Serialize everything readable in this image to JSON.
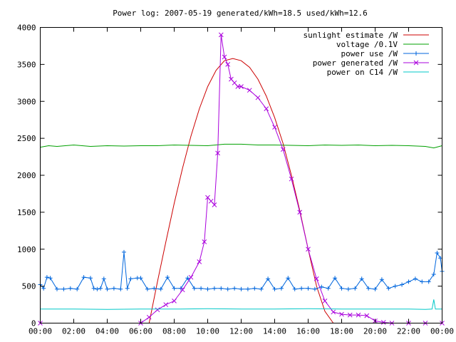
{
  "chart_data": {
    "type": "line",
    "title": "Power log: 2007-05-19 generated/kWh=18.5 used/kWh=12.6",
    "xlabel": "",
    "ylabel": "",
    "xlim": [
      0,
      24
    ],
    "ylim": [
      0,
      4000
    ],
    "x_ticks": [
      0,
      2,
      4,
      6,
      8,
      10,
      12,
      14,
      16,
      18,
      20,
      22,
      24
    ],
    "x_tick_labels": [
      "00:00",
      "02:00",
      "04:00",
      "06:00",
      "08:00",
      "10:00",
      "12:00",
      "14:00",
      "16:00",
      "18:00",
      "20:00",
      "22:00",
      "00:00"
    ],
    "y_ticks": [
      0,
      500,
      1000,
      1500,
      2000,
      2500,
      3000,
      3500,
      4000
    ],
    "y_tick_labels": [
      "0",
      "500",
      "1000",
      "1500",
      "2000",
      "2500",
      "3000",
      "3500",
      "4000"
    ],
    "grid": false,
    "legend_position": "top-right",
    "series": [
      {
        "name": "sunlight estimate /W",
        "color": "#cc0000",
        "marker": "none",
        "x": [
          6.5,
          7,
          7.5,
          8,
          8.5,
          9,
          9.5,
          10,
          10.5,
          11,
          11.5,
          12,
          12.5,
          13,
          13.5,
          14,
          14.5,
          15,
          15.5,
          16,
          16.5,
          17,
          17.5
        ],
        "values": [
          0,
          560,
          1100,
          1620,
          2100,
          2530,
          2900,
          3200,
          3420,
          3550,
          3580,
          3550,
          3460,
          3300,
          3070,
          2780,
          2430,
          2000,
          1520,
          1000,
          500,
          160,
          0
        ]
      },
      {
        "name": "voltage /0.1V",
        "color": "#00a000",
        "marker": "none",
        "x": [
          0,
          0.5,
          1,
          2,
          3,
          4,
          5,
          6,
          7,
          8,
          9,
          10,
          11,
          12,
          13,
          14,
          15,
          16,
          17,
          18,
          19,
          20,
          21,
          22,
          23,
          23.5,
          24
        ],
        "values": [
          2380,
          2400,
          2390,
          2410,
          2390,
          2400,
          2395,
          2400,
          2400,
          2410,
          2405,
          2400,
          2420,
          2420,
          2410,
          2410,
          2405,
          2400,
          2410,
          2405,
          2410,
          2400,
          2405,
          2400,
          2390,
          2370,
          2400
        ]
      },
      {
        "name": "power use /W",
        "color": "#0066dd",
        "marker": "plus",
        "x": [
          0,
          0.2,
          0.4,
          0.6,
          1.0,
          1.4,
          1.8,
          2.2,
          2.6,
          3.0,
          3.2,
          3.4,
          3.6,
          3.8,
          4.0,
          4.4,
          4.8,
          5.0,
          5.2,
          5.4,
          5.8,
          6.0,
          6.4,
          6.8,
          7.2,
          7.6,
          8.0,
          8.4,
          8.8,
          9.2,
          9.6,
          10.0,
          10.4,
          10.8,
          11.2,
          11.6,
          12.0,
          12.4,
          12.8,
          13.2,
          13.6,
          14.0,
          14.4,
          14.8,
          15.2,
          15.6,
          16.0,
          16.4,
          16.8,
          17.2,
          17.6,
          18.0,
          18.4,
          18.8,
          19.2,
          19.6,
          20.0,
          20.4,
          20.8,
          21.2,
          21.6,
          22.0,
          22.4,
          22.8,
          23.2,
          23.5,
          23.7,
          23.9,
          24.0
        ],
        "values": [
          520,
          470,
          620,
          610,
          460,
          460,
          470,
          460,
          620,
          610,
          470,
          460,
          470,
          600,
          460,
          470,
          460,
          960,
          470,
          600,
          610,
          610,
          460,
          470,
          460,
          620,
          470,
          470,
          610,
          470,
          470,
          460,
          470,
          470,
          460,
          470,
          460,
          460,
          470,
          460,
          600,
          460,
          470,
          610,
          460,
          470,
          470,
          460,
          490,
          470,
          610,
          470,
          460,
          470,
          600,
          470,
          460,
          590,
          470,
          500,
          520,
          560,
          600,
          560,
          560,
          660,
          950,
          880,
          700
        ]
      },
      {
        "name": "power generated /W",
        "color": "#aa00dd",
        "marker": "x",
        "x": [
          0,
          6,
          6.5,
          7,
          7.5,
          8,
          8.5,
          9,
          9.5,
          9.8,
          10.0,
          10.2,
          10.4,
          10.6,
          10.8,
          11.0,
          11.2,
          11.4,
          11.6,
          11.8,
          12,
          12.5,
          13,
          13.5,
          14,
          14.5,
          15,
          15.5,
          16,
          16.5,
          17,
          17.5,
          18,
          18.5,
          19,
          19.5,
          20,
          20.5,
          21,
          22,
          23,
          24
        ],
        "values": [
          0,
          0,
          80,
          180,
          250,
          300,
          450,
          620,
          830,
          1100,
          1700,
          1650,
          1600,
          2300,
          3900,
          3600,
          3500,
          3300,
          3250,
          3200,
          3200,
          3150,
          3050,
          2900,
          2650,
          2350,
          1950,
          1500,
          1000,
          600,
          300,
          150,
          120,
          110,
          110,
          100,
          30,
          10,
          0,
          0,
          0,
          0
        ]
      },
      {
        "name": "power on C14 /W",
        "color": "#00c8c8",
        "marker": "none",
        "x": [
          0,
          2,
          4,
          6,
          8,
          10,
          12,
          14,
          16,
          18,
          20,
          22,
          23,
          23.4,
          23.5,
          23.6,
          24
        ],
        "values": [
          190,
          190,
          185,
          190,
          190,
          195,
          190,
          190,
          195,
          190,
          190,
          190,
          185,
          190,
          320,
          190,
          190
        ]
      }
    ]
  }
}
